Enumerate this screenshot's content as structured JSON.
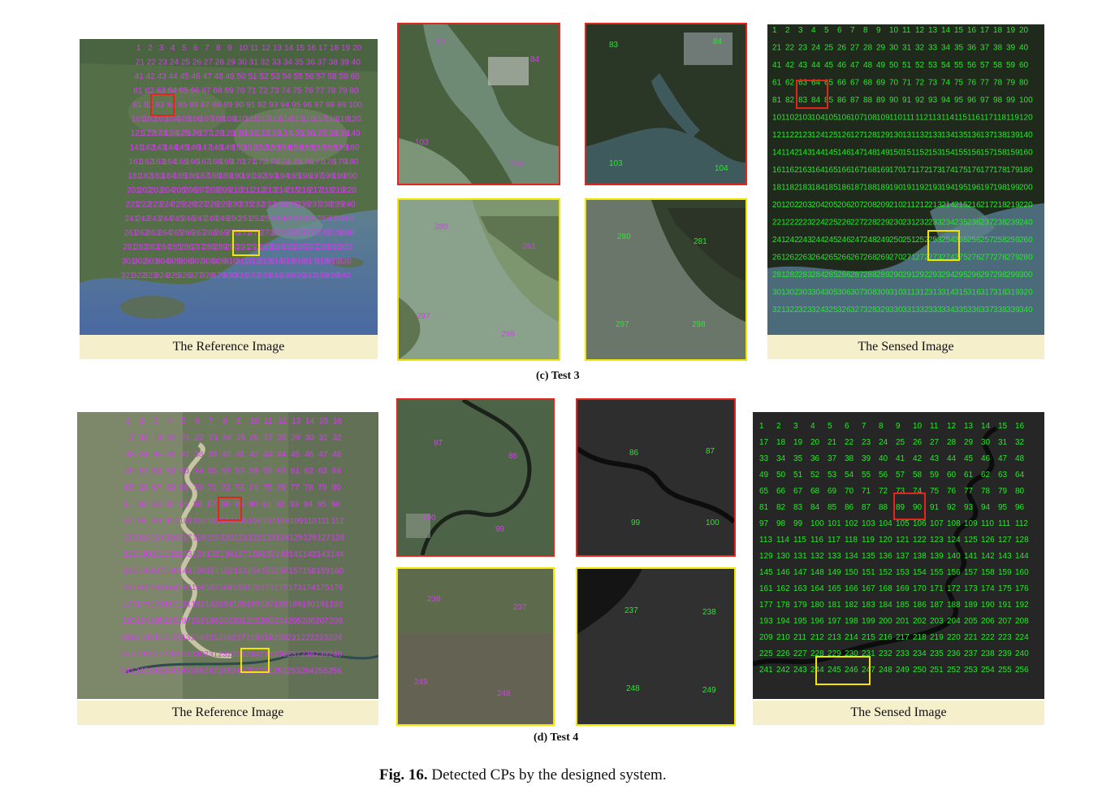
{
  "test3": {
    "subcaption": "(c) Test 3",
    "reference_label": "The Reference Image",
    "sensed_label": "The Sensed Image",
    "patch_ref_red_points": [
      "83",
      "84",
      "103",
      "104"
    ],
    "patch_sen_red_points": [
      "83",
      "84",
      "103",
      "104"
    ],
    "patch_ref_yellow_points": [
      "280",
      "281",
      "297",
      "298"
    ],
    "patch_sen_yellow_points": [
      "280",
      "281",
      "297",
      "298"
    ]
  },
  "test4": {
    "subcaption": "(d) Test 4",
    "reference_label": "The Reference Image",
    "sensed_label": "The Sensed Image",
    "patch_ref_red_points": [
      "87",
      "86",
      "100",
      "99"
    ],
    "patch_sen_red_points": [
      "86",
      "87",
      "99",
      "100"
    ],
    "patch_ref_yellow_points": [
      "238",
      "237",
      "249",
      "248"
    ],
    "patch_sen_yellow_points": [
      "237",
      "238",
      "248",
      "249"
    ]
  },
  "figure_caption": {
    "label": "Fig. 16.",
    "text": " Detected CPs by the designed system."
  },
  "colors": {
    "reference_points": "#d53cf0",
    "sensed_points": "#27e82b",
    "red_box": "#e2261c",
    "yellow_box": "#f2e600",
    "label_strip": "#f6efcc"
  }
}
